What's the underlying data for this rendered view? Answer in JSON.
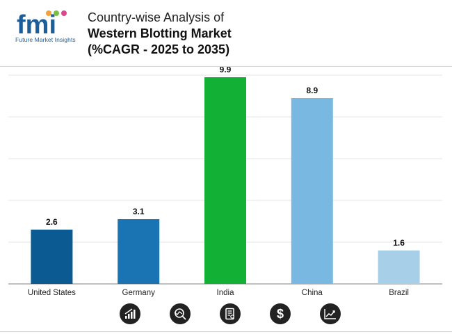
{
  "header": {
    "logo_text": "fmi",
    "logo_tagline": "Future Market Insights",
    "title_line1": "Country-wise Analysis of",
    "title_line2": "Western Blotting Market",
    "title_line3": "(%CAGR - 2025 to 2035)"
  },
  "colors": {
    "us": "#0b5a91",
    "germany": "#1a73b3",
    "india": "#12b035",
    "china": "#79b8e0",
    "brazil": "#a7cfe8",
    "grid": "#e4e4e4",
    "axis": "#9a9a9a",
    "icon_bg": "#222222"
  },
  "chart_data": {
    "type": "bar",
    "title": "Country-wise Analysis of Western Blotting Market (%CAGR - 2025 to 2035)",
    "categories": [
      "United States",
      "Germany",
      "India",
      "China",
      "Brazil"
    ],
    "values": [
      2.6,
      3.1,
      9.9,
      8.9,
      1.6
    ],
    "value_labels": [
      "2.6",
      "3.1",
      "9.9",
      "8.9",
      "1.6"
    ],
    "bar_colors": [
      "#0b5a91",
      "#1a73b3",
      "#12b035",
      "#79b8e0",
      "#a7cfe8"
    ],
    "xlabel": "",
    "ylabel": "",
    "ylim": [
      0,
      10
    ],
    "grid": true,
    "legend": "none"
  },
  "icons": [
    "bar-chart-growth-icon",
    "trend-magnifier-icon",
    "report-document-icon",
    "dollar-icon",
    "line-chart-icon"
  ]
}
